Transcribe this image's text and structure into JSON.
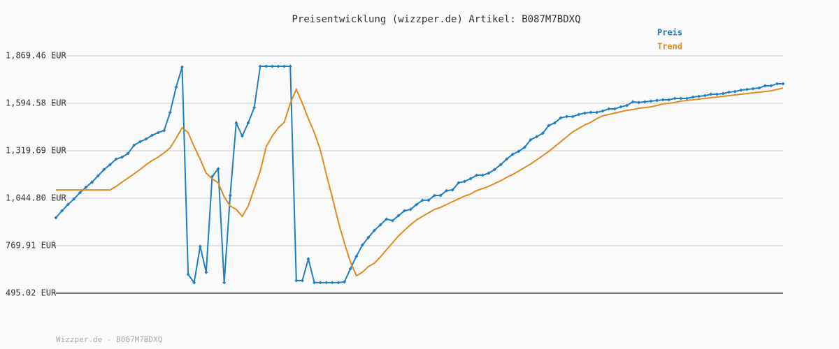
{
  "chart_data": {
    "type": "line",
    "title": "Preisentwicklung (wizzper.de) Artikel: B087M7BDXQ",
    "footer": "Wizzper.de - B087M7BDXQ",
    "ylim": [
      495.02,
      1869.46
    ],
    "yticks": [
      {
        "value": 495.02,
        "label": "495.02 EUR"
      },
      {
        "value": 769.91,
        "label": "769.91 EUR"
      },
      {
        "value": 1044.8,
        "label": "1,044.80 EUR"
      },
      {
        "value": 1319.69,
        "label": "1,319.69 EUR"
      },
      {
        "value": 1594.58,
        "label": "1,594.58 EUR"
      },
      {
        "value": 1869.46,
        "label": "1,869.46 EUR"
      }
    ],
    "grid": true,
    "legend": "top-right",
    "series": [
      {
        "name": "Preis",
        "color": "#1f7fc0",
        "markers": true,
        "values": [
          932,
          972,
          1008,
          1041,
          1077,
          1109,
          1138,
          1174,
          1211,
          1239,
          1271,
          1283,
          1304,
          1352,
          1372,
          1388,
          1409,
          1425,
          1437,
          1542,
          1688,
          1805,
          604,
          556,
          766,
          616,
          1170,
          1215,
          556,
          1061,
          1481,
          1405,
          1481,
          1570,
          1809,
          1809,
          1809,
          1809,
          1809,
          1809,
          568,
          568,
          693,
          556,
          556,
          556,
          556,
          556,
          560,
          636,
          709,
          774,
          818,
          859,
          891,
          924,
          915,
          944,
          972,
          980,
          1008,
          1033,
          1033,
          1061,
          1061,
          1089,
          1093,
          1134,
          1142,
          1158,
          1178,
          1178,
          1190,
          1211,
          1239,
          1271,
          1299,
          1316,
          1340,
          1384,
          1401,
          1421,
          1465,
          1481,
          1510,
          1518,
          1518,
          1530,
          1538,
          1542,
          1542,
          1550,
          1562,
          1562,
          1574,
          1582,
          1603,
          1599,
          1603,
          1607,
          1611,
          1615,
          1615,
          1623,
          1623,
          1623,
          1631,
          1635,
          1639,
          1647,
          1647,
          1651,
          1659,
          1663,
          1671,
          1675,
          1679,
          1683,
          1696,
          1696,
          1708,
          1708
        ]
      },
      {
        "name": "Trend",
        "color": "#e08a22",
        "markers": false,
        "values": [
          1093,
          1093,
          1093,
          1093,
          1093,
          1093,
          1093,
          1093,
          1093,
          1093,
          1113,
          1138,
          1162,
          1186,
          1211,
          1239,
          1263,
          1283,
          1308,
          1336,
          1392,
          1453,
          1425,
          1344,
          1271,
          1190,
          1158,
          1134,
          1053,
          1000,
          980,
          940,
          1000,
          1101,
          1202,
          1344,
          1405,
          1453,
          1485,
          1595,
          1675,
          1595,
          1506,
          1425,
          1324,
          1182,
          1049,
          907,
          786,
          677,
          596,
          616,
          649,
          669,
          705,
          746,
          786,
          826,
          859,
          891,
          919,
          940,
          960,
          980,
          992,
          1008,
          1025,
          1041,
          1057,
          1069,
          1089,
          1101,
          1113,
          1130,
          1146,
          1166,
          1182,
          1202,
          1223,
          1243,
          1267,
          1291,
          1316,
          1344,
          1372,
          1401,
          1429,
          1449,
          1469,
          1485,
          1506,
          1522,
          1530,
          1538,
          1546,
          1554,
          1558,
          1566,
          1570,
          1574,
          1582,
          1591,
          1595,
          1599,
          1607,
          1611,
          1615,
          1619,
          1623,
          1627,
          1631,
          1635,
          1639,
          1643,
          1647,
          1651,
          1655,
          1659,
          1663,
          1667,
          1675,
          1683
        ]
      }
    ]
  }
}
